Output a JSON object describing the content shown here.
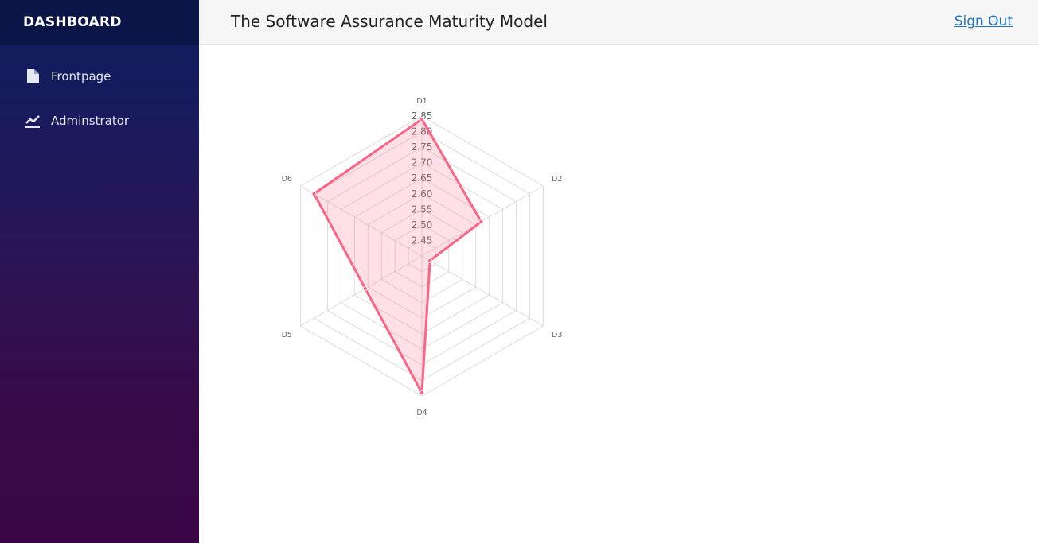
{
  "sidebar": {
    "brand": "DASHBOARD",
    "items": [
      {
        "label": "Frontpage",
        "icon": "file-icon"
      },
      {
        "label": "Adminstrator",
        "icon": "line-chart-icon"
      }
    ]
  },
  "header": {
    "title": "The Software Assurance Maturity Model",
    "signout": "Sign Out"
  },
  "colors": {
    "series_line": "#ff6384",
    "series_fill": "rgba(255,99,132,0.2)",
    "grid": "#dddddd"
  },
  "chart_data": {
    "type": "radar",
    "categories": [
      "D1",
      "D2",
      "D3",
      "D4",
      "D5",
      "D6"
    ],
    "series": [
      {
        "values": [
          2.84,
          2.62,
          2.43,
          2.84,
          2.61,
          2.8
        ]
      }
    ],
    "rlim": [
      2.4,
      2.85
    ],
    "r_ticks": [
      "2.45",
      "2.50",
      "2.55",
      "2.60",
      "2.65",
      "2.70",
      "2.75",
      "2.80",
      "2.85"
    ],
    "grid": true
  }
}
